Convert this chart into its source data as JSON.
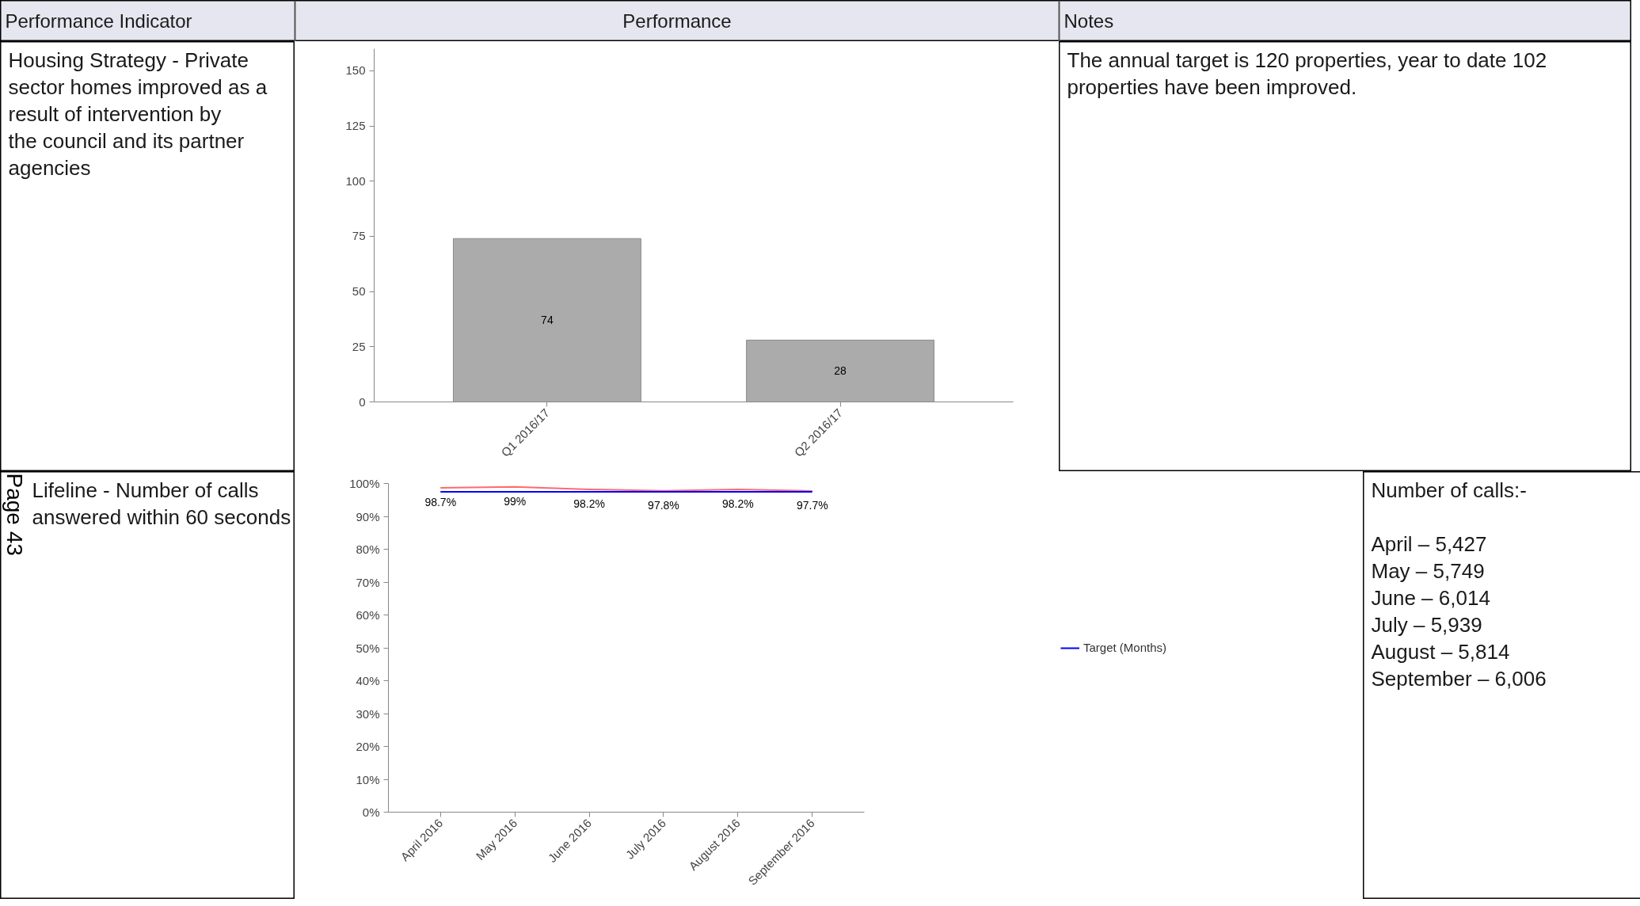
{
  "chart_data": [
    {
      "type": "other",
      "annotations": [
        "Performance Indicator",
        "Performance",
        "Notes"
      ]
    },
    {
      "type": "other",
      "annotations": [
        "Housing Strategy - Private sector homes improved as a result of intervention by the council and its partner agencies"
      ]
    },
    {
      "type": "bar",
      "categories": [
        "Q1 2016/17",
        "Q2 2016/17"
      ],
      "values": [
        74,
        28
      ],
      "color": "#ababab",
      "ylim": [
        0,
        160
      ],
      "yticks": [
        0,
        25,
        50,
        75,
        100,
        125,
        150
      ],
      "data_labels": true,
      "grid": false
    },
    {
      "type": "other",
      "annotations": [
        "The annual target is 120 properties, year to date 102 properties have been improved."
      ]
    },
    {
      "type": "other",
      "annotations": [
        "Lifeline - Number of calls answered within 60 seconds",
        "Page 43"
      ]
    },
    {
      "type": "line",
      "categories": [
        "April 2016",
        "May 2016",
        "June 2016",
        "July 2016",
        "August 2016",
        "September 2016"
      ],
      "series": [
        {
          "color": "#ff6b6b",
          "values": [
            98.7,
            99,
            98.2,
            97.8,
            98.2,
            97.7
          ],
          "value_labels": [
            "98.7%",
            "99%",
            "98.2%",
            "97.8%",
            "98.2%",
            "97.7%"
          ]
        },
        {
          "name": "Target (Months)",
          "color": "#0000ff",
          "values": [
            97.5,
            97.5,
            97.5,
            97.5,
            97.5,
            97.5
          ]
        }
      ],
      "ylim": [
        0,
        100
      ],
      "yticks": [
        {
          "value": 0,
          "label": "0%"
        },
        {
          "value": 10,
          "label": "10%"
        },
        {
          "value": 20,
          "label": "20%"
        },
        {
          "value": 30,
          "label": "30%"
        },
        {
          "value": 40,
          "label": "40%"
        },
        {
          "value": 50,
          "label": "50%"
        },
        {
          "value": 60,
          "label": "60%"
        },
        {
          "value": 70,
          "label": "70%"
        },
        {
          "value": 80,
          "label": "80%"
        },
        {
          "value": 90,
          "label": "90%"
        },
        {
          "value": 100,
          "label": "100%"
        }
      ],
      "legend": "right",
      "grid": false
    },
    {
      "type": "other",
      "annotations": [
        "Number of calls:-",
        "April – 5,427",
        "May – 5,749",
        "June – 6,014",
        "July – 5,939",
        "August – 5,814",
        "September – 6,006"
      ]
    }
  ]
}
